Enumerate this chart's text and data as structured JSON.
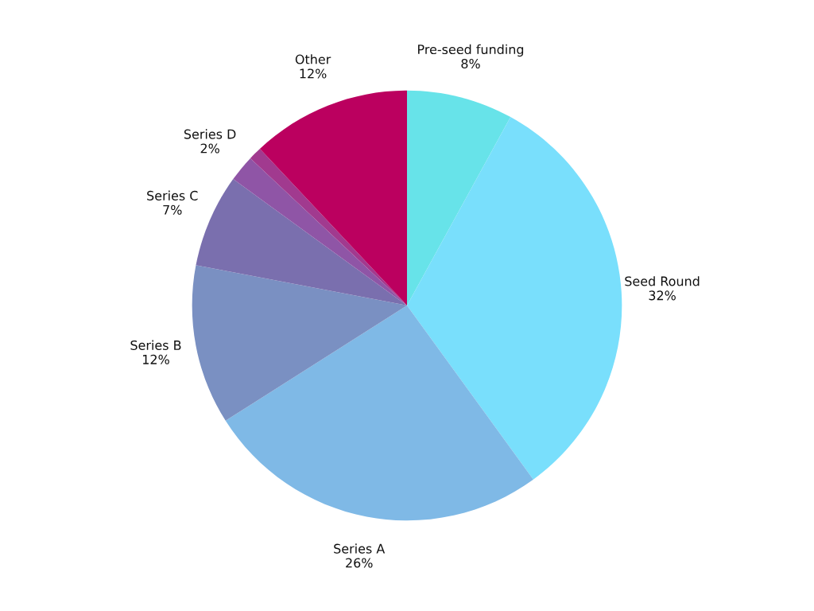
{
  "chart_data": {
    "type": "pie",
    "categories": [
      "Pre-seed funding",
      "Seed Round",
      "Series A",
      "Series B",
      "Series C",
      "Series D",
      null,
      "Other"
    ],
    "values": [
      8,
      32,
      26,
      12,
      7,
      2,
      1,
      12
    ],
    "value_labels": [
      "8%",
      "32%",
      "26%",
      "12%",
      "7%",
      "2%",
      null,
      "12%"
    ],
    "colors": [
      "#67e3e9",
      "#79dffc",
      "#7fb9e6",
      "#7a90c2",
      "#7a6fae",
      "#8f55a6",
      "#a13a8f",
      "#bb005f"
    ]
  }
}
